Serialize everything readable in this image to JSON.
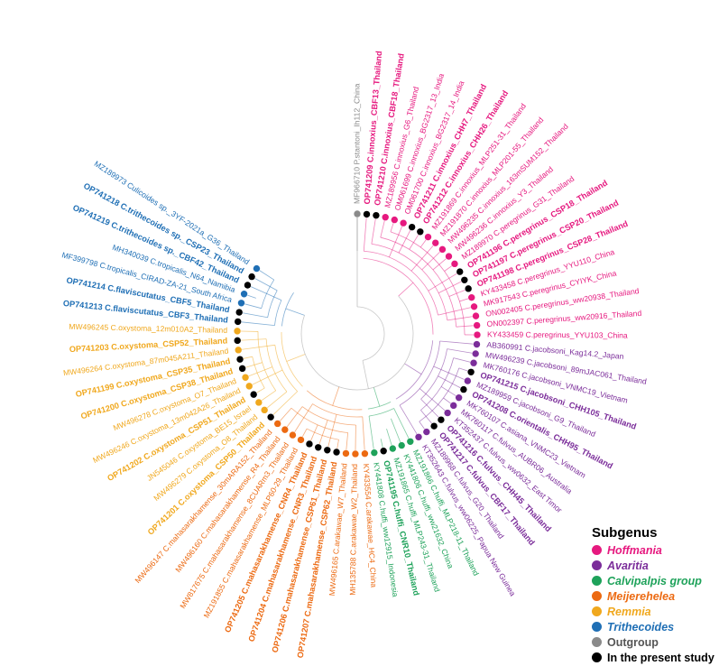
{
  "subgenera": {
    "hoffmania": {
      "label": "Hoffmania",
      "color": "#e6197f",
      "italic": true
    },
    "avaritia": {
      "label": "Avaritia",
      "color": "#7b2d9a",
      "italic": true
    },
    "calvipalpis": {
      "label": "Calvipalpis group",
      "color": "#1ea25a",
      "italic": true
    },
    "meijerehelea": {
      "label": "Meijerehelea",
      "color": "#ec6a12",
      "italic": true
    },
    "remmia": {
      "label": "Remmia",
      "color": "#f0a81e",
      "italic": true
    },
    "trithecoides": {
      "label": "Trithecoides",
      "color": "#1f6fb5",
      "italic": true
    },
    "outgroup": {
      "label": "Outgroup",
      "color": "#8a8a8a",
      "italic": false
    },
    "present": {
      "label": "In the present study",
      "color": "#000000",
      "italic": false
    }
  },
  "legend": {
    "title": "Subgenus",
    "order": [
      "hoffmania",
      "avaritia",
      "calvipalpis",
      "meijerehelea",
      "remmia",
      "trithecoides",
      "outgroup",
      "present"
    ]
  },
  "tips": [
    {
      "label": "MF966710 P.stantoni_Ih112_China",
      "group": "outgroup",
      "bold": false,
      "present": false
    },
    {
      "label": "OP741209 C.innoxius_CBF13_Thailand",
      "group": "hoffmania",
      "bold": true,
      "present": true
    },
    {
      "label": "OP741210 C.innoxius_CBF18_Thailand",
      "group": "hoffmania",
      "bold": true,
      "present": true
    },
    {
      "label": "MZ189956 C.innoxius_G6_Thailand",
      "group": "hoffmania",
      "bold": false,
      "present": false
    },
    {
      "label": "OM061699 C.innoxius_BG2317_13_India",
      "group": "hoffmania",
      "bold": false,
      "present": false
    },
    {
      "label": "OM061700 C.innoxius_BG2317_14_India",
      "group": "hoffmania",
      "bold": false,
      "present": false
    },
    {
      "label": "OP741211 C.innoxius_CHH7_Thailand",
      "group": "hoffmania",
      "bold": true,
      "present": true
    },
    {
      "label": "OP741212 C.innoxius_CHH26_Thailand",
      "group": "hoffmania",
      "bold": true,
      "present": true
    },
    {
      "label": "MZ191869 C.innoxius_MLP251-31_Thailand",
      "group": "hoffmania",
      "bold": false,
      "present": false
    },
    {
      "label": "MZ191870 C.innoxius_MLP201-55_Thailand",
      "group": "hoffmania",
      "bold": false,
      "present": false
    },
    {
      "label": "MW496235 C.innoxius_163mSUM152_Thailand",
      "group": "hoffmania",
      "bold": false,
      "present": false
    },
    {
      "label": "MW496236 C.innoxius_Y3_Thailand",
      "group": "hoffmania",
      "bold": false,
      "present": false
    },
    {
      "label": "MZ189970 C.peregrinus_G31_Thailand",
      "group": "hoffmania",
      "bold": false,
      "present": false
    },
    {
      "label": "OP741196 C.peregrinus_CSP18_Thailand",
      "group": "hoffmania",
      "bold": true,
      "present": true
    },
    {
      "label": "OP741197 C.peregrinus_CSP20_Thailand",
      "group": "hoffmania",
      "bold": true,
      "present": true
    },
    {
      "label": "OP741198 C.peregrinus_CSP28_Thailand",
      "group": "hoffmania",
      "bold": true,
      "present": true
    },
    {
      "label": "KY433458 C.peregrinus_YYU110_China",
      "group": "hoffmania",
      "bold": false,
      "present": false
    },
    {
      "label": "MK917543 C.peregrinus_CYIYK_China",
      "group": "hoffmania",
      "bold": false,
      "present": false
    },
    {
      "label": "ON002405 C.peregrinus_ww20938_Thailand",
      "group": "hoffmania",
      "bold": false,
      "present": false
    },
    {
      "label": "ON002397 C.peregrinus_ww20916_Thailand",
      "group": "hoffmania",
      "bold": false,
      "present": false
    },
    {
      "label": "KY433459 C.peregrinus_YYU103_China",
      "group": "hoffmania",
      "bold": false,
      "present": false
    },
    {
      "label": "AB360991 C.jacobsoni_Kag14.2_Japan",
      "group": "avaritia",
      "bold": false,
      "present": false
    },
    {
      "label": "MW496239 C.jacobsoni_89mJAC061_Thailand",
      "group": "avaritia",
      "bold": false,
      "present": false
    },
    {
      "label": "MK760176 C.jacobsoni_VNMC19_Vietnam",
      "group": "avaritia",
      "bold": false,
      "present": false
    },
    {
      "label": "OP741215 C.jacobsoni_CHH105_Thailand",
      "group": "avaritia",
      "bold": true,
      "present": true
    },
    {
      "label": "MZ189959 C.jacobsoni_G9_Thailand",
      "group": "avaritia",
      "bold": false,
      "present": false
    },
    {
      "label": "OP741208 C.orientalis_CHH95_Thailand",
      "group": "avaritia",
      "bold": true,
      "present": true
    },
    {
      "label": "MK760107 C.asiana_VNMC23_Vietnam",
      "group": "avaritia",
      "bold": false,
      "present": false
    },
    {
      "label": "MK760117 C.fulvus_AUBR06_Australia",
      "group": "avaritia",
      "bold": false,
      "present": false
    },
    {
      "label": "KT352437 C.fulvus_ww0632_East Timor",
      "group": "avaritia",
      "bold": false,
      "present": false
    },
    {
      "label": "OP741216 C.fulvus_CHH45_Thailand",
      "group": "avaritia",
      "bold": true,
      "present": true
    },
    {
      "label": "OP741217 C.fulvus_CBF17_Thailand",
      "group": "avaritia",
      "bold": true,
      "present": true
    },
    {
      "label": "MZ189968 C.fulvus_G20_Thailand",
      "group": "avaritia",
      "bold": false,
      "present": false
    },
    {
      "label": "KT352643 C.fulvus_ww06225_Papua New Guinea",
      "group": "avaritia",
      "bold": false,
      "present": false
    },
    {
      "label": "MZ191866 C.huffi_MLP218-11_Thailand",
      "group": "calvipalpis",
      "bold": false,
      "present": false
    },
    {
      "label": "KY441806 C.huffi_ww21632_China",
      "group": "calvipalpis",
      "bold": false,
      "present": false
    },
    {
      "label": "MZ191865 C.huffi_MLP243-31_Thailand",
      "group": "calvipalpis",
      "bold": false,
      "present": false
    },
    {
      "label": "OP741195 C.huffi_CNR10_Thailand",
      "group": "calvipalpis",
      "bold": true,
      "present": true
    },
    {
      "label": "KY441808 C.huffi_ww12915_Indonesia",
      "group": "calvipalpis",
      "bold": false,
      "present": false
    },
    {
      "label": "KY433554 C.arakawae_HC4_China",
      "group": "meijerehelea",
      "bold": false,
      "present": false
    },
    {
      "label": "MH135788 C.arakawae_W2_Thailand",
      "group": "meijerehelea",
      "bold": false,
      "present": false
    },
    {
      "label": "MW496165 C.arakawae_W7_Thailand",
      "group": "meijerehelea",
      "bold": false,
      "present": false
    },
    {
      "label": "OP741207 C.mahasarakhamense_CSP62_Thailand",
      "group": "meijerehelea",
      "bold": true,
      "present": true
    },
    {
      "label": "OP741206 C.mahasarakhamense_CSP61_Thailand",
      "group": "meijerehelea",
      "bold": true,
      "present": true
    },
    {
      "label": "OP741204 C.mahasarakhamense_CNR3_Thailand",
      "group": "meijerehelea",
      "bold": true,
      "present": true
    },
    {
      "label": "OP741205 C.mahasarakhamense_CNR4_Thailand",
      "group": "meijerehelea",
      "bold": true,
      "present": true
    },
    {
      "label": "MZ191855 C.mahasarakhamense_MLP60-29_Thailand",
      "group": "meijerehelea",
      "bold": false,
      "present": false
    },
    {
      "label": "MW817675 C.mahasarakhamense_8CUARm3_Thailand",
      "group": "meijerehelea",
      "bold": false,
      "present": false
    },
    {
      "label": "MW496160 C.mahasarakhamense_R4_Thailand",
      "group": "meijerehelea",
      "bold": false,
      "present": false
    },
    {
      "label": "MW496147 C.mahasarakhamense_30mARA152_Thailand",
      "group": "meijerehelea",
      "bold": false,
      "present": false
    },
    {
      "label": "OP741201 C.oxystoma_CSP50_Thailand",
      "group": "remmia",
      "bold": true,
      "present": true
    },
    {
      "label": "MW496279 C.oxystoma_O8_Thailand",
      "group": "remmia",
      "bold": false,
      "present": false
    },
    {
      "label": "JN545046 C.oxystoma_BE15_Israel",
      "group": "remmia",
      "bold": false,
      "present": false
    },
    {
      "label": "OP741202 C.oxystoma_CSP51_Thailand",
      "group": "remmia",
      "bold": true,
      "present": true
    },
    {
      "label": "MW496246 C.oxystoma_13m042A26_Thailand",
      "group": "remmia",
      "bold": false,
      "present": false
    },
    {
      "label": "MW496278 C.oxystoma_O7_Thailand",
      "group": "remmia",
      "bold": false,
      "present": false
    },
    {
      "label": "OP741200 C.oxystoma_CSP38_Thailand",
      "group": "remmia",
      "bold": true,
      "present": true
    },
    {
      "label": "OP741199 C.oxystoma_CSP35_Thailand",
      "group": "remmia",
      "bold": true,
      "present": true
    },
    {
      "label": "MW496264 C.oxystoma_87m045A211_Thailand",
      "group": "remmia",
      "bold": false,
      "present": false
    },
    {
      "label": "OP741203 C.oxystoma_CSP52_Thailand",
      "group": "remmia",
      "bold": true,
      "present": true
    },
    {
      "label": "MW496245 C.oxystoma_12m010A2_Thailand",
      "group": "remmia",
      "bold": false,
      "present": false
    },
    {
      "label": "OP741213 C.flaviscutatus_CBF3_Thailand",
      "group": "trithecoides",
      "bold": true,
      "present": true
    },
    {
      "label": "OP741214 C.flaviscutatus_CBF5_Thailand",
      "group": "trithecoides",
      "bold": true,
      "present": true
    },
    {
      "label": "MF399798 C.tropicalis_CIRAD-ZA-21_South Africa",
      "group": "trithecoides",
      "bold": false,
      "present": false
    },
    {
      "label": "MH340039 C.tropicalis_N64_Namibia",
      "group": "trithecoides",
      "bold": false,
      "present": false
    },
    {
      "label": "OP741219 C.trithecoides sp._CBF42_Thailand",
      "group": "trithecoides",
      "bold": true,
      "present": true
    },
    {
      "label": "OP741218 C.trithecoides sp._CSP23_Thailand",
      "group": "trithecoides",
      "bold": true,
      "present": true
    },
    {
      "label": "MZ189973 Culicoides sp._3YF-2021a_G36_Thailand",
      "group": "trithecoides",
      "bold": false,
      "present": false
    }
  ]
}
